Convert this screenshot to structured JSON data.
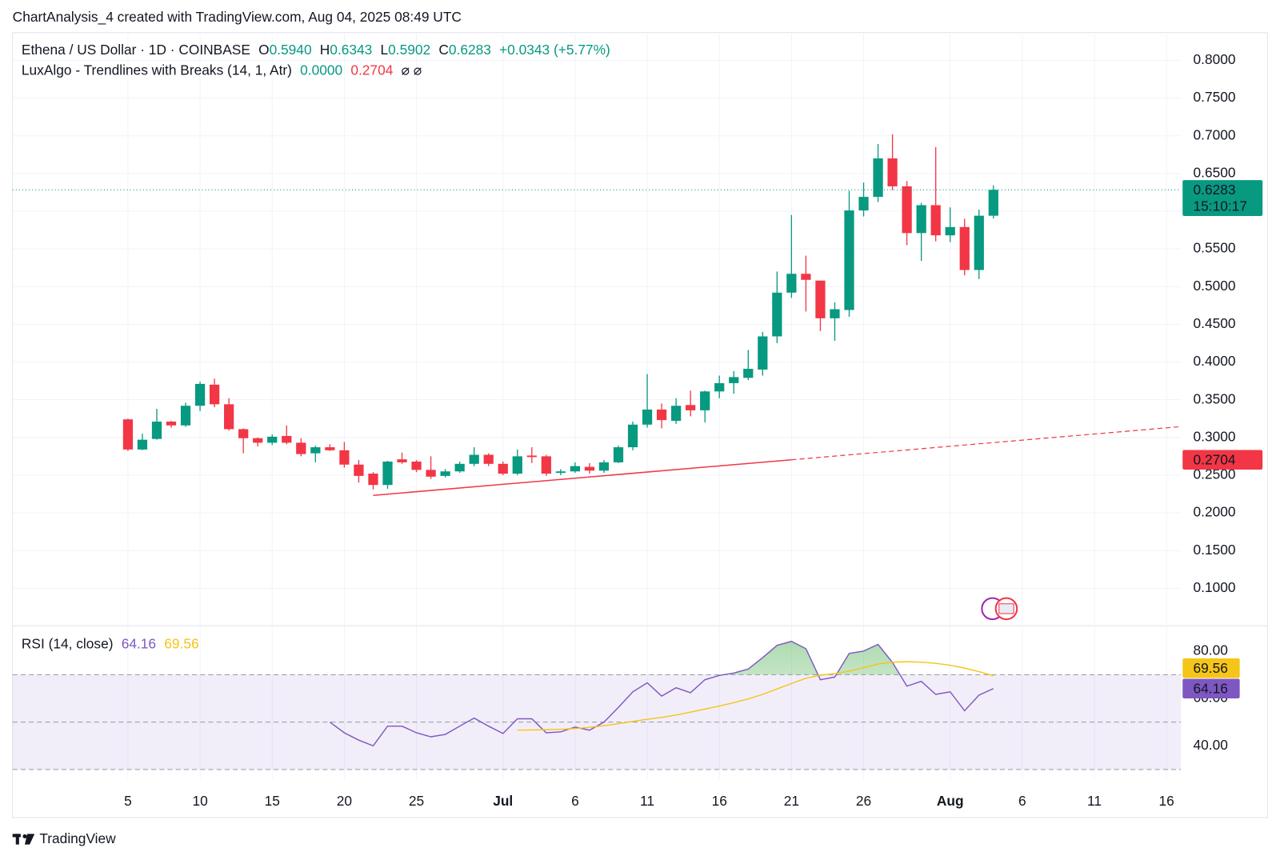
{
  "header": "ChartAnalysis_4 created with TradingView.com, Aug 04, 2025 08:49 UTC",
  "footer": "TradingView",
  "chart_data": [
    {
      "type": "candlestick",
      "title": "Ethena / US Dollar · 1D · COINBASE",
      "legend_items": [
        {
          "key": "O",
          "text": "0.5940"
        },
        {
          "key": "H",
          "text": "0.6343"
        },
        {
          "key": "L",
          "text": "0.5902"
        },
        {
          "key": "C",
          "text": "0.6283"
        }
      ],
      "change": "+0.0343 (+5.77%)",
      "up_color": "#089981",
      "down_color": "#f23645",
      "x": [
        "06-05",
        "06-06",
        "06-07",
        "06-08",
        "06-09",
        "06-10",
        "06-11",
        "06-12",
        "06-13",
        "06-14",
        "06-15",
        "06-16",
        "06-17",
        "06-18",
        "06-19",
        "06-20",
        "06-21",
        "06-22",
        "06-23",
        "06-24",
        "06-25",
        "06-26",
        "06-27",
        "06-28",
        "06-29",
        "06-30",
        "07-01",
        "07-02",
        "07-03",
        "07-04",
        "07-05",
        "07-06",
        "07-07",
        "07-08",
        "07-09",
        "07-10",
        "07-11",
        "07-12",
        "07-13",
        "07-14",
        "07-15",
        "07-16",
        "07-17",
        "07-18",
        "07-19",
        "07-20",
        "07-21",
        "07-22",
        "07-23",
        "07-24",
        "07-25",
        "07-26",
        "07-27",
        "07-28",
        "07-29",
        "07-30",
        "07-31",
        "08-01",
        "08-02",
        "08-03",
        "08-04"
      ],
      "open": [
        0.324,
        0.284,
        0.298,
        0.321,
        0.316,
        0.342,
        0.37,
        0.344,
        0.311,
        0.299,
        0.293,
        0.302,
        0.293,
        0.279,
        0.287,
        0.283,
        0.264,
        0.252,
        0.237,
        0.271,
        0.268,
        0.257,
        0.249,
        0.255,
        0.265,
        0.277,
        0.265,
        0.252,
        0.276,
        0.275,
        0.253,
        0.255,
        0.261,
        0.256,
        0.267,
        0.287,
        0.317,
        0.337,
        0.322,
        0.343,
        0.336,
        0.361,
        0.372,
        0.379,
        0.39,
        0.434,
        0.492,
        0.517,
        0.508,
        0.458,
        0.469,
        0.601,
        0.619,
        0.67,
        0.633,
        0.571,
        0.608,
        0.568,
        0.579,
        0.522,
        0.594
      ],
      "high": [
        0.325,
        0.305,
        0.338,
        0.322,
        0.346,
        0.374,
        0.378,
        0.352,
        0.312,
        0.3,
        0.304,
        0.316,
        0.299,
        0.289,
        0.291,
        0.294,
        0.27,
        0.254,
        0.269,
        0.28,
        0.27,
        0.275,
        0.258,
        0.268,
        0.287,
        0.279,
        0.268,
        0.284,
        0.287,
        0.277,
        0.258,
        0.267,
        0.266,
        0.27,
        0.289,
        0.321,
        0.384,
        0.345,
        0.352,
        0.362,
        0.362,
        0.382,
        0.388,
        0.416,
        0.44,
        0.52,
        0.595,
        0.541,
        0.508,
        0.479,
        0.627,
        0.638,
        0.689,
        0.702,
        0.64,
        0.611,
        0.685,
        0.605,
        0.59,
        0.602,
        0.6343
      ],
      "low": [
        0.282,
        0.283,
        0.297,
        0.313,
        0.314,
        0.335,
        0.34,
        0.309,
        0.279,
        0.288,
        0.29,
        0.291,
        0.275,
        0.267,
        0.282,
        0.26,
        0.24,
        0.231,
        0.232,
        0.265,
        0.254,
        0.245,
        0.247,
        0.253,
        0.262,
        0.262,
        0.25,
        0.25,
        0.266,
        0.249,
        0.25,
        0.253,
        0.252,
        0.253,
        0.266,
        0.283,
        0.313,
        0.312,
        0.318,
        0.328,
        0.32,
        0.352,
        0.358,
        0.376,
        0.382,
        0.425,
        0.485,
        0.467,
        0.441,
        0.428,
        0.46,
        0.593,
        0.612,
        0.628,
        0.555,
        0.534,
        0.56,
        0.559,
        0.515,
        0.51,
        0.5902
      ],
      "close": [
        0.284,
        0.297,
        0.321,
        0.316,
        0.342,
        0.371,
        0.344,
        0.311,
        0.299,
        0.293,
        0.301,
        0.293,
        0.278,
        0.287,
        0.283,
        0.264,
        0.249,
        0.237,
        0.268,
        0.267,
        0.257,
        0.248,
        0.255,
        0.265,
        0.277,
        0.265,
        0.252,
        0.275,
        0.274,
        0.252,
        0.255,
        0.262,
        0.256,
        0.267,
        0.287,
        0.317,
        0.337,
        0.323,
        0.342,
        0.336,
        0.361,
        0.372,
        0.38,
        0.391,
        0.434,
        0.492,
        0.517,
        0.509,
        0.458,
        0.47,
        0.601,
        0.619,
        0.67,
        0.633,
        0.571,
        0.608,
        0.568,
        0.579,
        0.522,
        0.594,
        0.6283
      ],
      "countdown": "15:10:17",
      "trendline": {
        "name": "LuxAlgo - Trendlines with Breaks (14, 1, Atr)",
        "legend_values": [
          {
            "text": "0.0000",
            "color": "#089981"
          },
          {
            "text": "0.2704",
            "color": "#f23645"
          }
        ],
        "icons": "⌀  ⌀",
        "x": [
          "06-22",
          "07-21"
        ],
        "values": [
          0.2232,
          0.2704
        ],
        "color": "#f23645"
      },
      "xlim": [
        "05-28",
        "08-17"
      ],
      "xticks": [
        {
          "value": "06-05",
          "label": "5"
        },
        {
          "value": "06-10",
          "label": "10"
        },
        {
          "value": "06-15",
          "label": "15"
        },
        {
          "value": "06-20",
          "label": "20"
        },
        {
          "value": "06-25",
          "label": "25"
        },
        {
          "value": "07-01",
          "label": "Jul"
        },
        {
          "value": "07-06",
          "label": "6"
        },
        {
          "value": "07-11",
          "label": "11"
        },
        {
          "value": "07-16",
          "label": "16"
        },
        {
          "value": "07-21",
          "label": "21"
        },
        {
          "value": "07-26",
          "label": "26"
        },
        {
          "value": "08-01",
          "label": "Aug"
        },
        {
          "value": "08-06",
          "label": "6"
        },
        {
          "value": "08-11",
          "label": "11"
        },
        {
          "value": "08-16",
          "label": "16"
        }
      ],
      "ylim": [
        0.0513,
        0.8346
      ],
      "yticks": [
        {
          "value": 0.1,
          "label": "0.1000"
        },
        {
          "value": 0.15,
          "label": "0.1500"
        },
        {
          "value": 0.2,
          "label": "0.2000"
        },
        {
          "value": 0.25,
          "label": "0.2500"
        },
        {
          "value": 0.3,
          "label": "0.3000"
        },
        {
          "value": 0.35,
          "label": "0.3500"
        },
        {
          "value": 0.4,
          "label": "0.4000"
        },
        {
          "value": 0.45,
          "label": "0.4500"
        },
        {
          "value": 0.5,
          "label": "0.5000"
        },
        {
          "value": 0.55,
          "label": "0.5500"
        },
        {
          "value": 0.6,
          "label": "0.6000"
        },
        {
          "value": 0.65,
          "label": "0.6500"
        },
        {
          "value": 0.7,
          "label": "0.7000"
        },
        {
          "value": 0.75,
          "label": "0.7500"
        },
        {
          "value": 0.8,
          "label": "0.8000"
        }
      ],
      "grid": true
    },
    {
      "type": "line",
      "title": "RSI (14, close)",
      "series": [
        {
          "color": "#7e57c2",
          "values": [
            null,
            null,
            null,
            null,
            null,
            null,
            null,
            null,
            null,
            null,
            null,
            null,
            null,
            null,
            50,
            45.5,
            42.4,
            40,
            48.3,
            48.3,
            45.5,
            43.8,
            44.8,
            48.3,
            51.7,
            48.3,
            45.2,
            51.4,
            51.4,
            45.5,
            45.9,
            47.9,
            46.6,
            50,
            56.2,
            62.8,
            66.6,
            61,
            64.5,
            62.4,
            67.9,
            69.7,
            70.7,
            72.4,
            77.2,
            82.4,
            84.1,
            81,
            67.9,
            69,
            79,
            80,
            82.8,
            75.2,
            65.2,
            67.2,
            61.7,
            62.8,
            54.8,
            61.4,
            64.16
          ]
        },
        {
          "color": "#f5c518",
          "values": [
            null,
            null,
            null,
            null,
            null,
            null,
            null,
            null,
            null,
            null,
            null,
            null,
            null,
            null,
            null,
            null,
            null,
            null,
            null,
            null,
            null,
            null,
            null,
            null,
            null,
            null,
            null,
            46.6,
            46.7,
            46.8,
            47,
            47.3,
            47.8,
            48.5,
            49.3,
            50.3,
            51.2,
            52,
            53,
            54.2,
            55.5,
            56.8,
            58.2,
            59.8,
            61.7,
            64,
            66.3,
            68.5,
            69.8,
            70.5,
            71.5,
            73,
            74.5,
            75.3,
            75.5,
            75.3,
            74.8,
            74,
            72.8,
            71.3,
            69.56
          ]
        }
      ],
      "hlines": [
        70,
        50,
        30
      ],
      "ylim": [
        25.9,
        90.3
      ],
      "yticks": [
        {
          "value": 40,
          "label": "40.00"
        },
        {
          "value": 60,
          "label": "60.00"
        },
        {
          "value": 80,
          "label": "80.00"
        }
      ]
    }
  ]
}
